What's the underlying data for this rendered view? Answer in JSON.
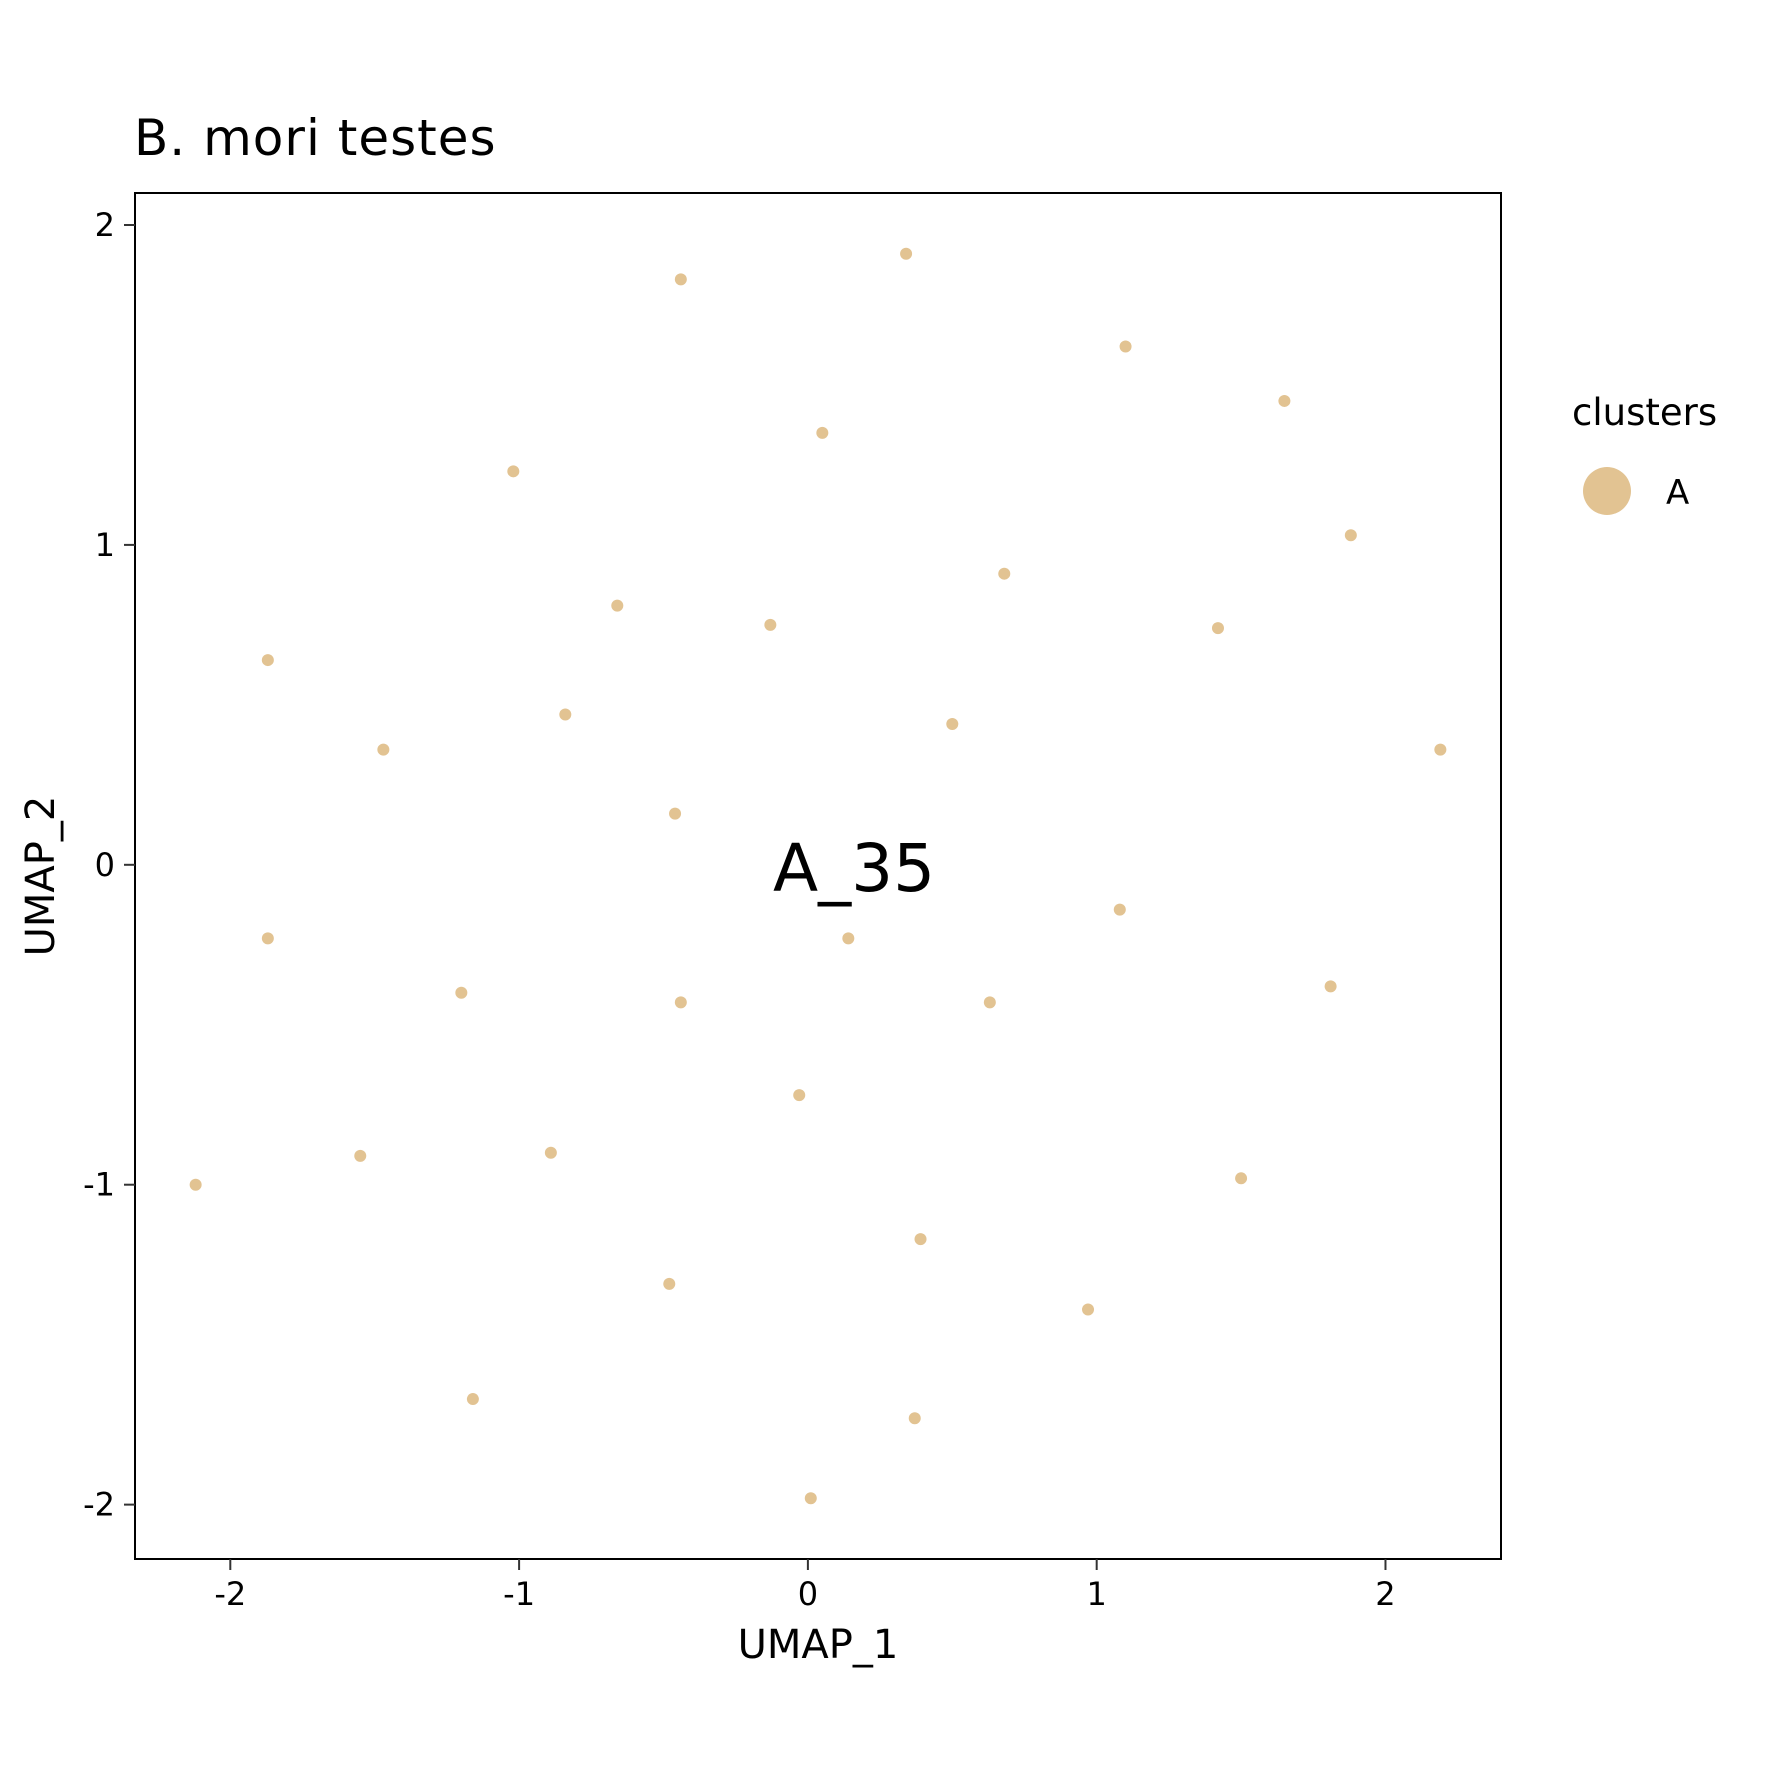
{
  "chart_data": {
    "type": "scatter",
    "title": "B. mori testes",
    "xlabel": "UMAP_1",
    "ylabel": "UMAP_2",
    "xlim": [
      -2.33,
      2.4
    ],
    "ylim": [
      -2.17,
      2.1
    ],
    "xticks": [
      -2,
      -1,
      0,
      1,
      2
    ],
    "yticks": [
      -2,
      -1,
      0,
      1,
      2
    ],
    "xtick_labels": [
      "-2",
      "-1",
      "0",
      "1",
      "2"
    ],
    "ytick_labels": [
      "-2",
      "-1",
      "0",
      "1",
      "2"
    ],
    "grid": false,
    "legend": {
      "title": "clusters",
      "position": "right",
      "entries": [
        {
          "label": "A",
          "color": "#E2C392"
        }
      ]
    },
    "annotations": [
      {
        "text": "A_35",
        "x": 0.16,
        "y": -0.01
      }
    ],
    "series": [
      {
        "name": "A",
        "color": "#E2C392",
        "points": [
          [
            0.34,
            1.91
          ],
          [
            -0.44,
            1.83
          ],
          [
            1.1,
            1.62
          ],
          [
            1.65,
            1.45
          ],
          [
            0.05,
            1.35
          ],
          [
            -1.02,
            1.23
          ],
          [
            1.88,
            1.03
          ],
          [
            0.68,
            0.91
          ],
          [
            -0.66,
            0.81
          ],
          [
            -0.13,
            0.75
          ],
          [
            1.42,
            0.74
          ],
          [
            -1.87,
            0.64
          ],
          [
            -0.84,
            0.47
          ],
          [
            0.5,
            0.44
          ],
          [
            -1.47,
            0.36
          ],
          [
            2.19,
            0.36
          ],
          [
            -0.46,
            0.16
          ],
          [
            1.08,
            -0.14
          ],
          [
            -1.87,
            -0.23
          ],
          [
            0.14,
            -0.23
          ],
          [
            1.81,
            -0.38
          ],
          [
            -1.2,
            -0.4
          ],
          [
            -0.44,
            -0.43
          ],
          [
            0.63,
            -0.43
          ],
          [
            -0.03,
            -0.72
          ],
          [
            -1.55,
            -0.91
          ],
          [
            -0.89,
            -0.9
          ],
          [
            -2.12,
            -1.0
          ],
          [
            1.5,
            -0.98
          ],
          [
            0.39,
            -1.17
          ],
          [
            -0.48,
            -1.31
          ],
          [
            0.97,
            -1.39
          ],
          [
            -1.16,
            -1.67
          ],
          [
            0.37,
            -1.73
          ],
          [
            0.01,
            -1.98
          ]
        ]
      }
    ]
  }
}
